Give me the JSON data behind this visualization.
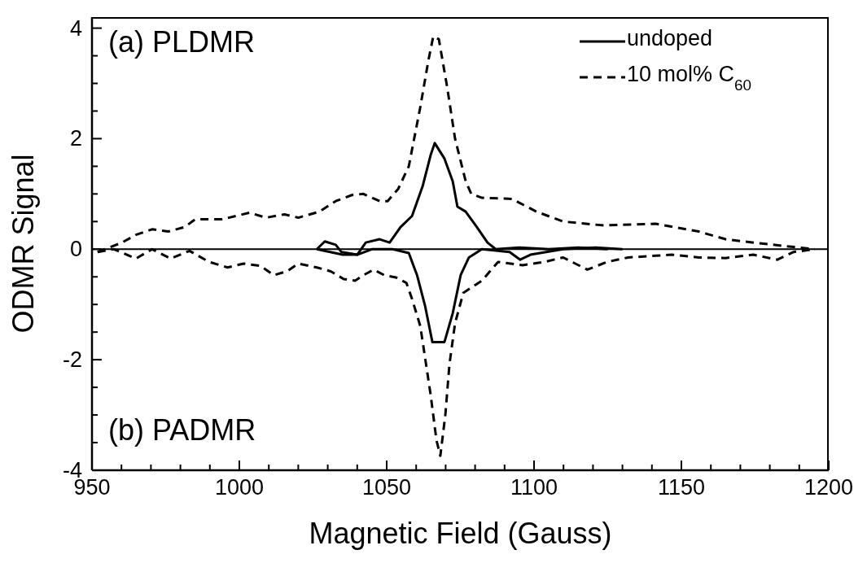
{
  "chart_data": {
    "type": "line",
    "xlabel": "Magnetic Field (Gauss)",
    "ylabel": "ODMR Signal",
    "annotations": [
      "(a) PLDMR",
      "(b) PADMR"
    ],
    "xlim": [
      950,
      1200
    ],
    "xticks": [
      950,
      {
        "value": 960,
        "label": null
      },
      {
        "value": 970,
        "label": null
      },
      {
        "value": 980,
        "label": null
      },
      {
        "value": 990,
        "label": null
      },
      1000,
      {
        "value": 1010,
        "label": null
      },
      {
        "value": 1020,
        "label": null
      },
      {
        "value": 1030,
        "label": null
      },
      {
        "value": 1040,
        "label": null
      },
      1050,
      {
        "value": 1060,
        "label": null
      },
      {
        "value": 1070,
        "label": null
      },
      {
        "value": 1080,
        "label": null
      },
      {
        "value": 1090,
        "label": null
      },
      1100,
      {
        "value": 1110,
        "label": null
      },
      {
        "value": 1120,
        "label": null
      },
      {
        "value": 1130,
        "label": null
      },
      {
        "value": 1140,
        "label": null
      },
      1150,
      {
        "value": 1160,
        "label": null
      },
      {
        "value": 1170,
        "label": null
      },
      {
        "value": 1180,
        "label": null
      },
      {
        "value": 1190,
        "label": null
      },
      1200
    ],
    "ylim": [
      -4,
      4.2
    ],
    "yticks": [
      -4,
      {
        "value": -3.5,
        "label": null
      },
      {
        "value": -3,
        "label": null
      },
      {
        "value": -2.5,
        "label": null
      },
      -2,
      {
        "value": -1.5,
        "label": null
      },
      {
        "value": -1,
        "label": null
      },
      {
        "value": -0.5,
        "label": null
      },
      0,
      {
        "value": 0.5,
        "label": null
      },
      {
        "value": 1,
        "label": null
      },
      {
        "value": 1.5,
        "label": null
      },
      2,
      {
        "value": 2.5,
        "label": null
      },
      {
        "value": 3,
        "label": null
      },
      {
        "value": 3.5,
        "label": null
      },
      4
    ],
    "ref_lines": [
      {
        "axis": "y",
        "value": 0,
        "color": "#000000",
        "line_style": "solid"
      }
    ],
    "grid": false,
    "legend": "top right",
    "marker": "none",
    "series": [
      {
        "name": "undoped",
        "color": "#000000",
        "line_style": "solid",
        "x": [
          1026.3,
          1029,
          1032.7,
          1034.6,
          1040,
          1042.9,
          1047.6,
          1051,
          1054.7,
          1058.6,
          1062.2,
          1064.9,
          1066.3,
          1069.6,
          1072.4,
          1074,
          1076.8,
          1080.6,
          1084.2,
          1087,
          1095,
          1105,
          1115,
          1125
        ],
        "values": [
          0,
          0.14,
          0.08,
          -0.05,
          -0.1,
          0.12,
          0.18,
          0.12,
          0.4,
          0.6,
          1.14,
          1.7,
          1.92,
          1.64,
          1.23,
          0.77,
          0.68,
          0.4,
          0.12,
          0,
          0.03,
          0,
          0.03,
          0
        ]
      },
      {
        "color": "#000000",
        "line_style": "solid",
        "x": [
          1026.3,
          1035,
          1040,
          1045,
          1052,
          1057.5,
          1060.3,
          1063,
          1065.5,
          1069.6,
          1072.4,
          1075.1,
          1077.9,
          1082.3,
          1091.7,
          1095.3,
          1098.8,
          1109.9,
          1120.9,
          1130
        ],
        "values": [
          0,
          -0.1,
          -0.1,
          0,
          0,
          -0.07,
          -0.47,
          -1.02,
          -1.68,
          -1.68,
          -1.16,
          -0.47,
          -0.15,
          0,
          -0.05,
          -0.19,
          -0.1,
          0,
          0.03,
          0
        ]
      },
      {
        "name": "10 mol% C$_{60}$",
        "color": "#000000",
        "line_style": "dashed",
        "x": [
          951.9,
          960.2,
          964.9,
          970.4,
          975.9,
          981.4,
          985,
          994.1,
          1003.5,
          1009,
          1015.3,
          1020,
          1027.2,
          1032.7,
          1038.2,
          1042.1,
          1047.6,
          1050.3,
          1053.9,
          1057.5,
          1061.4,
          1064.1,
          1065.8,
          1067.7,
          1070.5,
          1073.2,
          1076.8,
          1078.7,
          1082.3,
          1092.5,
          1100.8,
          1109.9,
          1123.6,
          1141.3,
          1155.9,
          1165,
          1176,
          1188.1,
          1195.3
        ],
        "values": [
          -0.05,
          0.12,
          0.26,
          0.36,
          0.32,
          0.4,
          0.54,
          0.54,
          0.66,
          0.57,
          0.63,
          0.57,
          0.68,
          0.87,
          0.98,
          1.0,
          0.87,
          0.87,
          1.09,
          1.5,
          2.57,
          3.4,
          3.85,
          3.8,
          2.94,
          2.0,
          1.23,
          1.0,
          0.93,
          0.91,
          0.68,
          0.5,
          0.43,
          0.46,
          0.32,
          0.18,
          0.11,
          0.04,
          0
        ]
      },
      {
        "color": "#000000",
        "line_style": "dashed",
        "x": [
          951.9,
          957.4,
          964.9,
          970.4,
          976.7,
          983.1,
          989.7,
          996,
          1001.5,
          1007.1,
          1011.7,
          1016.2,
          1020,
          1026.3,
          1031,
          1035.4,
          1039.3,
          1042.1,
          1045.6,
          1049.2,
          1053.1,
          1056.7,
          1058.6,
          1061.4,
          1064.9,
          1066.9,
          1068.2,
          1069.9,
          1071.3,
          1073.2,
          1076,
          1082.3,
          1087.8,
          1096.1,
          1103.5,
          1109.9,
          1118.1,
          1124.8,
          1131.9,
          1146.8,
          1155.9,
          1165,
          1174.4,
          1182.6,
          1188.1,
          1195.3
        ],
        "values": [
          -0.05,
          0,
          -0.17,
          0,
          -0.17,
          -0.03,
          -0.23,
          -0.33,
          -0.26,
          -0.3,
          -0.47,
          -0.4,
          -0.26,
          -0.33,
          -0.4,
          -0.54,
          -0.57,
          -0.47,
          -0.37,
          -0.47,
          -0.51,
          -0.61,
          -0.9,
          -1.39,
          -2.63,
          -3.46,
          -3.74,
          -3.0,
          -2.08,
          -1.34,
          -0.79,
          -0.57,
          -0.23,
          -0.29,
          -0.23,
          -0.15,
          -0.37,
          -0.23,
          -0.15,
          -0.1,
          -0.15,
          -0.16,
          -0.1,
          -0.19,
          -0.05,
          0
        ]
      }
    ]
  }
}
